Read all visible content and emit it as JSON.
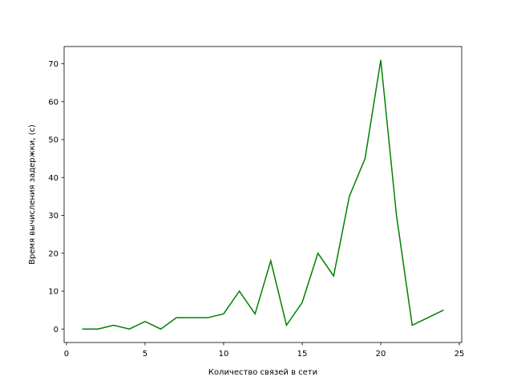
{
  "chart_data": {
    "type": "line",
    "title": "",
    "xlabel": "Количество связей в сети",
    "ylabel": "Время вычисления задержки, (с)",
    "xlim": [
      -0.15,
      25.15
    ],
    "ylim": [
      -3.55,
      74.55
    ],
    "x_ticks": [
      0,
      5,
      10,
      15,
      20,
      25
    ],
    "y_ticks": [
      0,
      10,
      20,
      30,
      40,
      50,
      60,
      70
    ],
    "grid": false,
    "line_color": "#008000",
    "series": [
      {
        "x": [
          1,
          2,
          3,
          4,
          5,
          6,
          7,
          8,
          9,
          10,
          11,
          12,
          13,
          14,
          15,
          16,
          17,
          18,
          19,
          20,
          21,
          22,
          23,
          24
        ],
        "y": [
          0,
          0,
          1,
          0,
          2,
          0,
          3,
          3,
          3,
          4,
          10,
          4,
          18,
          1,
          7,
          20,
          14,
          35,
          45,
          71,
          30,
          1,
          3,
          5
        ]
      }
    ]
  }
}
